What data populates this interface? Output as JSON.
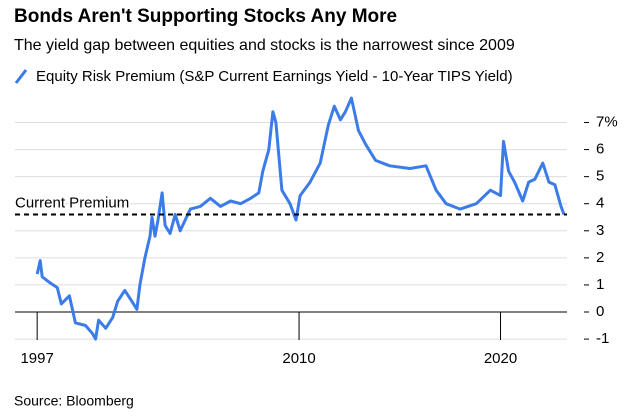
{
  "chart_data": {
    "type": "line",
    "title": "Bonds Aren't Supporting Stocks Any More",
    "subtitle": "The yield gap between equities and stocks is the narrowest since 2009",
    "source": "Source: Bloomberg",
    "series": [
      {
        "name": "Equity Risk Premium (S&P Current Earnings Yield - 10-Year TIPS Yield)",
        "color": "#3b7ce8",
        "x": [
          1997.0,
          1997.15,
          1997.25,
          1997.6,
          1998.0,
          1998.2,
          1998.6,
          1998.9,
          1999.4,
          1999.75,
          1999.9,
          2000.05,
          2000.4,
          2000.75,
          2001.0,
          2001.35,
          2001.7,
          2001.95,
          2002.1,
          2002.35,
          2002.6,
          2002.7,
          2002.85,
          2003.0,
          2003.2,
          2003.35,
          2003.6,
          2003.85,
          2004.1,
          2004.6,
          2005.1,
          2005.6,
          2006.1,
          2006.6,
          2007.1,
          2007.6,
          2008.0,
          2008.2,
          2008.5,
          2008.7,
          2008.85,
          2009.15,
          2009.55,
          2009.85,
          2010.05,
          2010.55,
          2011.05,
          2011.45,
          2011.75,
          2012.05,
          2012.3,
          2012.6,
          2012.95,
          2013.3,
          2013.8,
          2014.5,
          2015.5,
          2016.3,
          2016.8,
          2017.3,
          2018.0,
          2018.8,
          2019.5,
          2020.0,
          2020.15,
          2020.4,
          2020.7,
          2021.1,
          2021.4,
          2021.7,
          2022.1,
          2022.4,
          2022.7,
          2023.0,
          2023.15
        ],
        "values": [
          1.4,
          1.9,
          1.3,
          1.1,
          0.9,
          0.3,
          0.6,
          -0.4,
          -0.5,
          -0.8,
          -1.0,
          -0.3,
          -0.6,
          -0.2,
          0.4,
          0.8,
          0.4,
          0.1,
          1.0,
          2.0,
          2.8,
          3.5,
          2.8,
          3.4,
          4.4,
          3.2,
          2.9,
          3.6,
          3.0,
          3.8,
          3.9,
          4.2,
          3.9,
          4.1,
          4.0,
          4.2,
          4.4,
          5.2,
          6.0,
          7.4,
          7.0,
          4.5,
          4.0,
          3.4,
          4.3,
          4.8,
          5.5,
          6.9,
          7.6,
          7.1,
          7.4,
          7.9,
          6.7,
          6.2,
          5.6,
          5.4,
          5.3,
          5.4,
          4.5,
          4.0,
          3.8,
          4.0,
          4.5,
          4.3,
          6.3,
          5.2,
          4.8,
          4.1,
          4.8,
          4.9,
          5.5,
          4.8,
          4.7,
          3.9,
          3.6
        ]
      }
    ],
    "annotations": [
      {
        "text": "Current Premium",
        "value": 3.6
      }
    ],
    "xlim": [
      1995.9,
      2023.3
    ],
    "xticks": [
      1997,
      2010,
      2020
    ],
    "ylim": [
      -1.2,
      8.2
    ],
    "yticks": [
      -1,
      0,
      1,
      2,
      3,
      4,
      5,
      6,
      {
        "value": 7,
        "label": "7%"
      }
    ],
    "grid": true
  }
}
